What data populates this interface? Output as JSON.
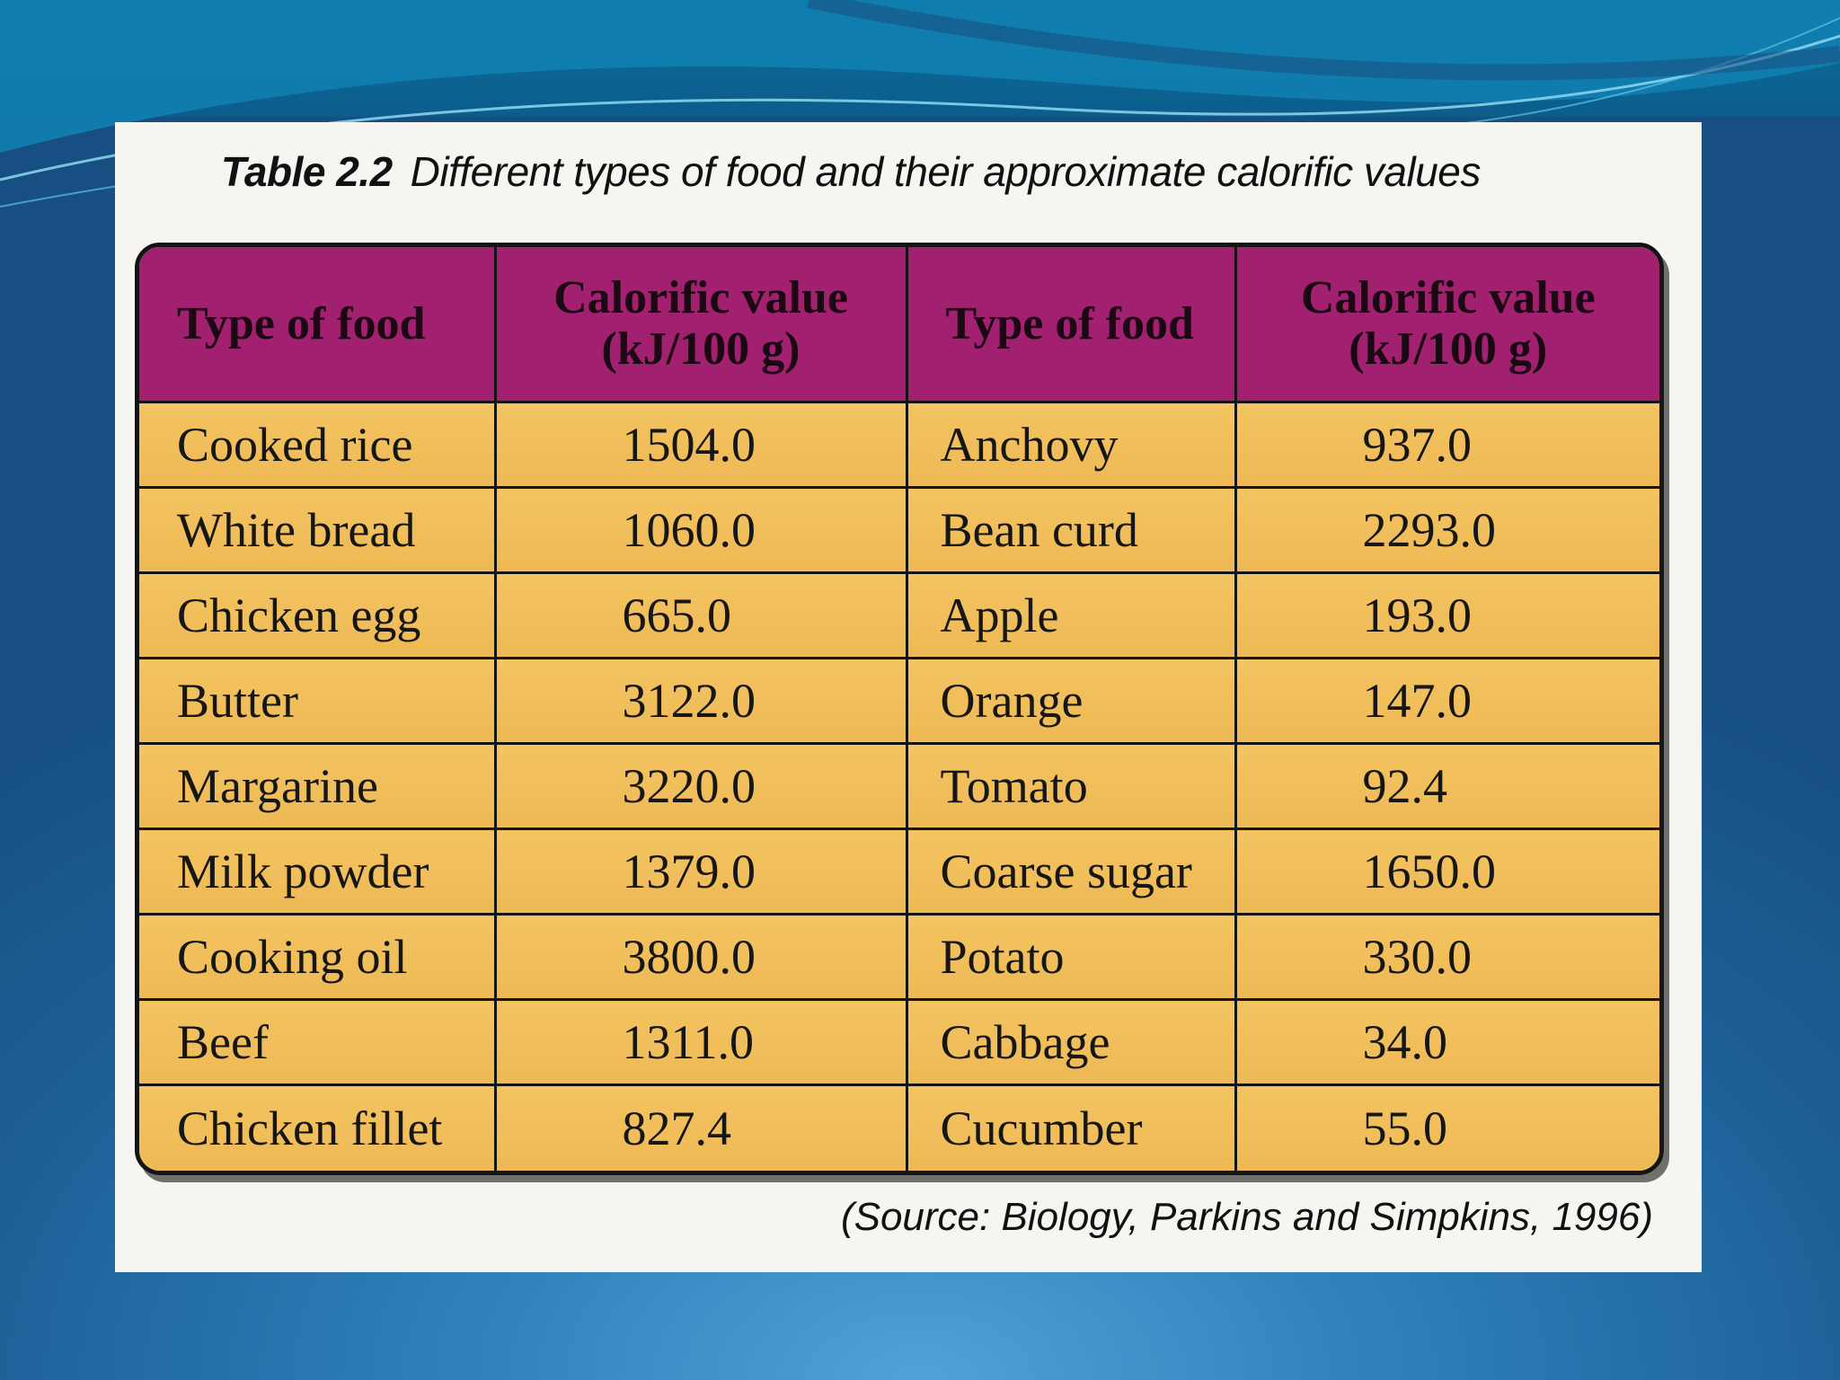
{
  "caption": {
    "label": "Table 2.2",
    "text": "Different types of food and their approximate calorific values"
  },
  "table": {
    "headers": {
      "food_1": "Type of food",
      "value_1_line1": "Calorific value",
      "value_1_line2": "(kJ/100 g)",
      "food_2": "Type of food",
      "value_2_line1": "Calorific value",
      "value_2_line2": "(kJ/100 g)"
    },
    "rows": [
      {
        "food_1": "Cooked rice",
        "value_1": "1504.0",
        "food_2": "Anchovy",
        "value_2": "937.0"
      },
      {
        "food_1": "White bread",
        "value_1": "1060.0",
        "food_2": "Bean curd",
        "value_2": "2293.0"
      },
      {
        "food_1": "Chicken egg",
        "value_1": "665.0",
        "food_2": "Apple",
        "value_2": "193.0"
      },
      {
        "food_1": "Butter",
        "value_1": "3122.0",
        "food_2": "Orange",
        "value_2": "147.0"
      },
      {
        "food_1": "Margarine",
        "value_1": "3220.0",
        "food_2": "Tomato",
        "value_2": "92.4"
      },
      {
        "food_1": "Milk powder",
        "value_1": "1379.0",
        "food_2": "Coarse sugar",
        "value_2": "1650.0"
      },
      {
        "food_1": "Cooking oil",
        "value_1": "3800.0",
        "food_2": "Potato",
        "value_2": "330.0"
      },
      {
        "food_1": "Beef",
        "value_1": "1311.0",
        "food_2": "Cabbage",
        "value_2": "34.0"
      },
      {
        "food_1": "Chicken fillet",
        "value_1": "827.4",
        "food_2": "Cucumber",
        "value_2": "55.0"
      }
    ]
  },
  "source": "(Source: Biology, Parkins and Simpkins, 1996)"
}
